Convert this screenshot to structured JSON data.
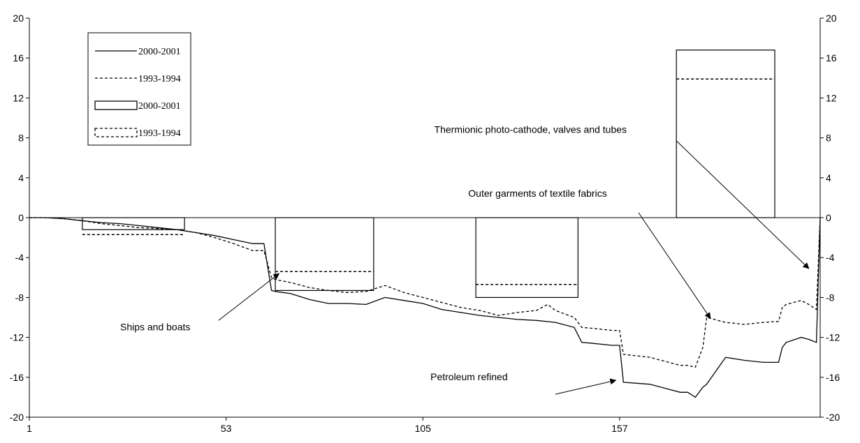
{
  "chart_data": {
    "type": "line",
    "title": "",
    "xlabel": "",
    "ylabel": "",
    "xlim": [
      1,
      210
    ],
    "ylim": [
      -20,
      20
    ],
    "y_ticks": [
      20,
      16,
      12,
      8,
      4,
      0,
      -4,
      -8,
      -12,
      -16,
      -20
    ],
    "y_tick_labels": [
      "20",
      "16",
      "12",
      "8",
      "4",
      "0",
      "-4",
      "-8",
      "-12",
      "-16",
      "-20"
    ],
    "x_ticks": [
      1,
      53,
      105,
      157
    ],
    "x_tick_labels": [
      "1",
      "53",
      "105",
      "157"
    ],
    "grid": false,
    "legend_position": "top-left",
    "legend": [
      {
        "label": "2000-2001",
        "kind": "line",
        "style": "solid"
      },
      {
        "label": "1993-1994",
        "kind": "line",
        "style": "dashed"
      },
      {
        "label": "2000-2001",
        "kind": "box",
        "style": "solid"
      },
      {
        "label": "1993-1994",
        "kind": "box",
        "style": "dashed"
      }
    ],
    "series": [
      {
        "kind": "line",
        "style": "solid",
        "x": [
          1,
          5,
          10,
          15,
          20,
          25,
          30,
          35,
          40,
          45,
          50,
          55,
          60,
          63,
          65,
          66,
          70,
          75,
          80,
          85,
          90,
          95,
          100,
          105,
          110,
          115,
          120,
          125,
          130,
          135,
          140,
          145,
          147,
          150,
          155,
          157,
          158,
          165,
          170,
          173,
          175,
          177,
          179,
          180,
          185,
          190,
          195,
          199,
          200,
          201,
          205,
          207,
          209,
          210
        ],
        "y": [
          0,
          0,
          -0.1,
          -0.3,
          -0.5,
          -0.6,
          -0.8,
          -1.0,
          -1.2,
          -1.5,
          -1.8,
          -2.2,
          -2.6,
          -2.6,
          -7.3,
          -7.4,
          -7.6,
          -8.2,
          -8.6,
          -8.6,
          -8.7,
          -8.0,
          -8.3,
          -8.6,
          -9.2,
          -9.5,
          -9.8,
          -10.0,
          -10.2,
          -10.3,
          -10.5,
          -11.0,
          -12.5,
          -12.6,
          -12.8,
          -12.8,
          -16.5,
          -16.7,
          -17.2,
          -17.5,
          -17.5,
          -18.0,
          -17.0,
          -16.7,
          -14.0,
          -14.3,
          -14.5,
          -14.5,
          -13.0,
          -12.5,
          -12.0,
          -12.2,
          -12.5,
          0
        ]
      },
      {
        "kind": "line",
        "style": "dashed",
        "x": [
          1,
          5,
          10,
          15,
          20,
          25,
          30,
          35,
          40,
          45,
          50,
          55,
          60,
          63,
          65,
          66,
          70,
          75,
          80,
          85,
          90,
          95,
          100,
          105,
          110,
          115,
          120,
          125,
          130,
          135,
          138,
          140,
          145,
          147,
          150,
          155,
          157,
          158,
          165,
          170,
          173,
          175,
          177,
          179,
          180,
          185,
          190,
          195,
          199,
          200,
          201,
          205,
          207,
          209,
          210
        ],
        "y": [
          0,
          0,
          -0.1,
          -0.3,
          -0.6,
          -0.8,
          -1.0,
          -1.1,
          -1.2,
          -1.5,
          -2.0,
          -2.6,
          -3.3,
          -3.3,
          -6.0,
          -6.2,
          -6.5,
          -7.0,
          -7.3,
          -7.5,
          -7.4,
          -6.8,
          -7.5,
          -8.0,
          -8.5,
          -9.0,
          -9.3,
          -9.8,
          -9.5,
          -9.3,
          -8.7,
          -9.3,
          -10.0,
          -11.0,
          -11.1,
          -11.3,
          -11.3,
          -13.7,
          -14.0,
          -14.5,
          -14.8,
          -14.8,
          -15.0,
          -13.0,
          -10.0,
          -10.5,
          -10.7,
          -10.5,
          -10.4,
          -9.0,
          -8.7,
          -8.3,
          -8.7,
          -9.2,
          0
        ]
      },
      {
        "kind": "box",
        "style": "solid",
        "x0": 15,
        "x1": 42,
        "y": -1.2
      },
      {
        "kind": "box",
        "style": "dashed",
        "x0": 15,
        "x1": 42,
        "y": -1.7
      },
      {
        "kind": "box",
        "style": "solid",
        "x0": 66,
        "x1": 92,
        "y": -7.3
      },
      {
        "kind": "box",
        "style": "dashed",
        "x0": 66,
        "x1": 92,
        "y": -5.4
      },
      {
        "kind": "box",
        "style": "solid",
        "x0": 119,
        "x1": 146,
        "y": -8.0
      },
      {
        "kind": "box",
        "style": "dashed",
        "x0": 119,
        "x1": 146,
        "y": -6.7
      },
      {
        "kind": "box",
        "style": "solid",
        "x0": 172,
        "x1": 198,
        "y": 16.8
      },
      {
        "kind": "box",
        "style": "dashed",
        "x0": 172,
        "x1": 198,
        "y": 13.9
      }
    ],
    "annotations": [
      {
        "text": "Ships and boats",
        "label_x": 25,
        "label_y": -11.3,
        "arrow_from": [
          51,
          -10.3
        ],
        "arrow_to": [
          67,
          -5.6
        ]
      },
      {
        "text": "Petroleum refined",
        "label_x": 107,
        "label_y": -16.3,
        "arrow_from": [
          140,
          -17.7
        ],
        "arrow_to": [
          156,
          -16.3
        ]
      },
      {
        "text": "Outer garments of textile fabrics",
        "label_x": 117,
        "label_y": 2.1,
        "arrow_from": [
          162,
          0.5
        ],
        "arrow_to": [
          181,
          -10.1
        ]
      },
      {
        "text": "Thermionic photo-cathode, valves and tubes",
        "label_x": 108,
        "label_y": 8.5,
        "arrow_from": [
          172,
          7.7
        ],
        "arrow_to": [
          207,
          -5.1
        ]
      }
    ]
  }
}
